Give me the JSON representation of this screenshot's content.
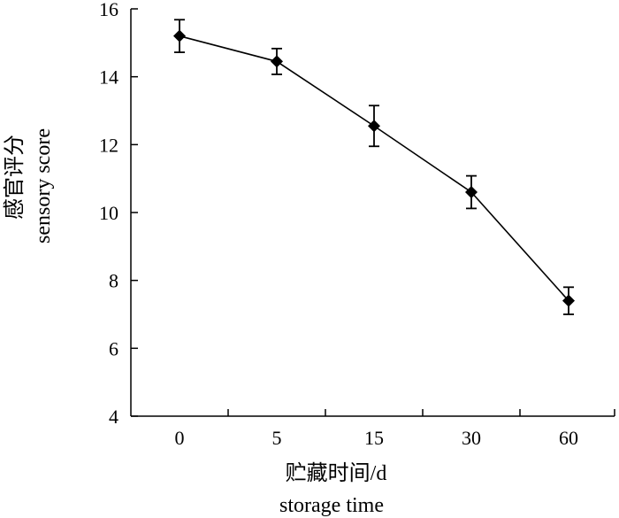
{
  "chart_data": {
    "type": "line",
    "categories": [
      "0",
      "5",
      "15",
      "30",
      "60"
    ],
    "values": [
      15.2,
      14.45,
      12.55,
      10.6,
      7.4
    ],
    "errors": [
      0.48,
      0.38,
      0.6,
      0.48,
      0.4
    ],
    "xlabel_cn": "贮藏时间/d",
    "xlabel_en": "storage time",
    "ylabel_cn": "感官评分",
    "ylabel_en": "sensory score",
    "ylim": [
      4,
      16
    ],
    "yticks": [
      "4",
      "6",
      "8",
      "10",
      "12",
      "14",
      "16"
    ],
    "grid": false,
    "marker": "diamond",
    "line_color": "#000000"
  }
}
